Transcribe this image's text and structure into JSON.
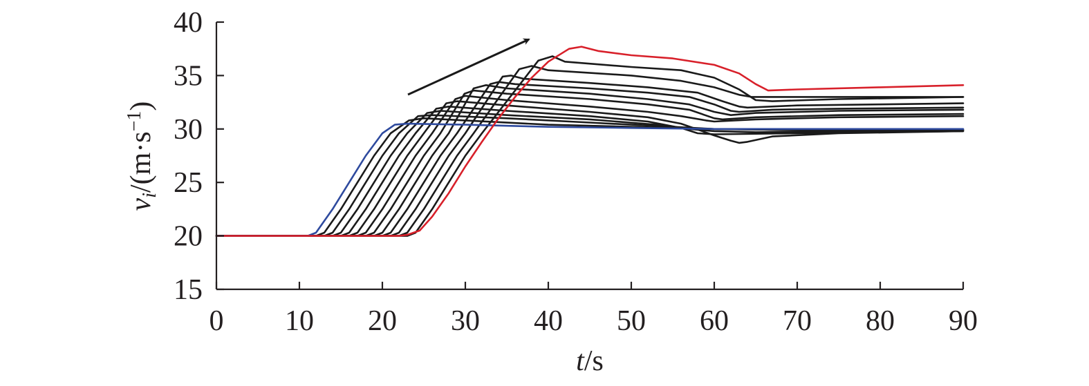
{
  "chart_data": {
    "type": "line",
    "title": "",
    "xlabel_var": "t",
    "xlabel_unit": "/s",
    "ylabel_var": "v",
    "ylabel_sub": "i",
    "ylabel_unit_open": "/(m·s",
    "ylabel_unit_sup": "−1",
    "ylabel_unit_close": ")",
    "xlim": [
      0,
      90
    ],
    "ylim": [
      15,
      40
    ],
    "xticks": [
      0,
      10,
      20,
      30,
      40,
      50,
      60,
      70,
      80,
      90
    ],
    "yticks": [
      15,
      20,
      25,
      30,
      35,
      40
    ],
    "grid": false,
    "legend": "none",
    "annotation": "arrow indicating increasing peak velocity",
    "colors": {
      "first": "#2e4a9e",
      "middle": "#1a1a1a",
      "last": "#d8202a",
      "axis": "#231f20"
    },
    "series": [
      {
        "color": "first",
        "points": [
          [
            0,
            20
          ],
          [
            11,
            20
          ],
          [
            12,
            20.3
          ],
          [
            14,
            22.5
          ],
          [
            16,
            25
          ],
          [
            18,
            27.5
          ],
          [
            20,
            29.6
          ],
          [
            21.5,
            30.4
          ],
          [
            23,
            30.5
          ],
          [
            30,
            30.4
          ],
          [
            40,
            30.2
          ],
          [
            50,
            30.1
          ],
          [
            60,
            30
          ],
          [
            70,
            30
          ],
          [
            80,
            30
          ],
          [
            90,
            30
          ]
        ]
      },
      {
        "color": "middle",
        "points": [
          [
            0,
            20
          ],
          [
            12,
            20
          ],
          [
            13,
            20.3
          ],
          [
            15,
            22.5
          ],
          [
            17,
            25
          ],
          [
            19,
            27.5
          ],
          [
            21,
            29.6
          ],
          [
            23.2,
            30.8
          ],
          [
            25,
            31
          ],
          [
            30,
            30.8
          ],
          [
            40,
            30.4
          ],
          [
            50,
            30.2
          ],
          [
            60,
            30
          ],
          [
            70,
            29.9
          ],
          [
            80,
            29.9
          ],
          [
            90,
            29.9
          ]
        ]
      },
      {
        "color": "middle",
        "points": [
          [
            0,
            20
          ],
          [
            13,
            20
          ],
          [
            14,
            20.3
          ],
          [
            16,
            22.5
          ],
          [
            18,
            25
          ],
          [
            20,
            27.5
          ],
          [
            22,
            29.6
          ],
          [
            24.3,
            31.2
          ],
          [
            26,
            31.3
          ],
          [
            35,
            31
          ],
          [
            45,
            30.6
          ],
          [
            55,
            30.2
          ],
          [
            60,
            30
          ],
          [
            70,
            29.9
          ],
          [
            80,
            29.9
          ],
          [
            90,
            29.9
          ]
        ]
      },
      {
        "color": "middle",
        "points": [
          [
            0,
            20
          ],
          [
            14,
            20
          ],
          [
            15,
            20.3
          ],
          [
            17,
            22.5
          ],
          [
            19,
            25
          ],
          [
            21,
            27.5
          ],
          [
            23,
            29.6
          ],
          [
            25.4,
            31.5
          ],
          [
            27,
            31.7
          ],
          [
            35,
            31.3
          ],
          [
            45,
            30.9
          ],
          [
            53,
            30.4
          ],
          [
            57,
            30
          ],
          [
            60,
            29.8
          ],
          [
            65,
            29.7
          ],
          [
            80,
            29.8
          ],
          [
            90,
            29.9
          ]
        ]
      },
      {
        "color": "middle",
        "points": [
          [
            0,
            20
          ],
          [
            15,
            20
          ],
          [
            16,
            20.3
          ],
          [
            18,
            22.5
          ],
          [
            20,
            25
          ],
          [
            22,
            27.5
          ],
          [
            24,
            29.6
          ],
          [
            26.5,
            31.9
          ],
          [
            28,
            32.1
          ],
          [
            35,
            31.7
          ],
          [
            45,
            31.2
          ],
          [
            52,
            30.7
          ],
          [
            56,
            30.1
          ],
          [
            58,
            29.6
          ],
          [
            60,
            29.5
          ],
          [
            70,
            29.6
          ],
          [
            90,
            29.8
          ]
        ]
      },
      {
        "color": "middle",
        "points": [
          [
            0,
            20
          ],
          [
            16,
            20
          ],
          [
            17,
            20.3
          ],
          [
            19,
            22.5
          ],
          [
            21,
            25
          ],
          [
            23,
            27.5
          ],
          [
            25,
            29.6
          ],
          [
            27.7,
            32.4
          ],
          [
            29,
            32.6
          ],
          [
            35,
            32.2
          ],
          [
            45,
            31.6
          ],
          [
            52,
            31.1
          ],
          [
            56,
            30.5
          ],
          [
            60,
            29.4
          ],
          [
            62,
            28.9
          ],
          [
            63,
            28.7
          ],
          [
            64,
            28.8
          ],
          [
            67,
            29.3
          ],
          [
            75,
            29.6
          ],
          [
            90,
            29.8
          ]
        ]
      },
      {
        "color": "middle",
        "points": [
          [
            0,
            20
          ],
          [
            17,
            20
          ],
          [
            18,
            20.3
          ],
          [
            20,
            22.5
          ],
          [
            22,
            25
          ],
          [
            24,
            27.5
          ],
          [
            26,
            29.6
          ],
          [
            28.8,
            32.8
          ],
          [
            30,
            33.1
          ],
          [
            35,
            32.7
          ],
          [
            45,
            32.1
          ],
          [
            52,
            31.6
          ],
          [
            56,
            31.2
          ],
          [
            59,
            30.8
          ],
          [
            60,
            30.7
          ],
          [
            65,
            30.9
          ],
          [
            75,
            31.1
          ],
          [
            90,
            31.2
          ]
        ]
      },
      {
        "color": "middle",
        "points": [
          [
            0,
            20
          ],
          [
            18,
            20
          ],
          [
            19,
            20.3
          ],
          [
            21,
            22.5
          ],
          [
            23,
            25
          ],
          [
            25,
            27.5
          ],
          [
            27,
            29.6
          ],
          [
            29.9,
            33.3
          ],
          [
            31,
            33.6
          ],
          [
            35,
            33.3
          ],
          [
            45,
            32.8
          ],
          [
            52,
            32.3
          ],
          [
            57,
            31.8
          ],
          [
            60,
            31
          ],
          [
            61,
            30.9
          ],
          [
            65,
            31.1
          ],
          [
            75,
            31.3
          ],
          [
            90,
            31.4
          ]
        ]
      },
      {
        "color": "middle",
        "points": [
          [
            0,
            20
          ],
          [
            19,
            20
          ],
          [
            20,
            20.3
          ],
          [
            22,
            22.5
          ],
          [
            24,
            25
          ],
          [
            26,
            27.5
          ],
          [
            28,
            29.6
          ],
          [
            31,
            33.8
          ],
          [
            32.5,
            34.1
          ],
          [
            35,
            33.8
          ],
          [
            45,
            33.3
          ],
          [
            52,
            32.8
          ],
          [
            57,
            32.3
          ],
          [
            60,
            31.6
          ],
          [
            62,
            31.3
          ],
          [
            65,
            31.5
          ],
          [
            75,
            31.7
          ],
          [
            90,
            31.8
          ]
        ]
      },
      {
        "color": "middle",
        "points": [
          [
            0,
            20
          ],
          [
            20,
            20
          ],
          [
            21,
            20.3
          ],
          [
            23,
            22.5
          ],
          [
            25,
            25
          ],
          [
            27,
            27.5
          ],
          [
            29,
            29.6
          ],
          [
            33,
            34.2
          ],
          [
            34,
            34.4
          ],
          [
            36,
            34.2
          ],
          [
            45,
            33.8
          ],
          [
            52,
            33.4
          ],
          [
            57,
            33
          ],
          [
            60,
            32.3
          ],
          [
            62,
            31.7
          ],
          [
            63,
            31.6
          ],
          [
            67,
            31.8
          ],
          [
            75,
            31.9
          ],
          [
            90,
            32
          ]
        ]
      },
      {
        "color": "middle",
        "points": [
          [
            0,
            20
          ],
          [
            21,
            20
          ],
          [
            22,
            20.3
          ],
          [
            24,
            22.5
          ],
          [
            26,
            25
          ],
          [
            28,
            27.5
          ],
          [
            30,
            29.6
          ],
          [
            34.5,
            34.9
          ],
          [
            35.5,
            35
          ],
          [
            37,
            34.7
          ],
          [
            45,
            34.3
          ],
          [
            52,
            33.9
          ],
          [
            58,
            33.4
          ],
          [
            61,
            32.6
          ],
          [
            63,
            32.1
          ],
          [
            64,
            32
          ],
          [
            70,
            32.2
          ],
          [
            80,
            32.3
          ],
          [
            90,
            32.4
          ]
        ]
      },
      {
        "color": "middle",
        "points": [
          [
            0,
            20
          ],
          [
            22,
            20
          ],
          [
            23,
            20.3
          ],
          [
            25,
            22.5
          ],
          [
            27,
            25
          ],
          [
            29,
            27.5
          ],
          [
            31,
            29.6
          ],
          [
            36.5,
            35.6
          ],
          [
            38,
            35.9
          ],
          [
            40,
            35.5
          ],
          [
            50,
            35
          ],
          [
            56,
            34.5
          ],
          [
            60,
            33.9
          ],
          [
            63,
            33.2
          ],
          [
            64.5,
            33
          ],
          [
            70,
            33
          ],
          [
            80,
            33
          ],
          [
            90,
            33
          ]
        ]
      },
      {
        "color": "middle",
        "points": [
          [
            0,
            20
          ],
          [
            23,
            20
          ],
          [
            24,
            20.3
          ],
          [
            26,
            22.5
          ],
          [
            28,
            25
          ],
          [
            30,
            27.5
          ],
          [
            32,
            29.6
          ],
          [
            38.8,
            36.4
          ],
          [
            40.5,
            36.8
          ],
          [
            42,
            36.3
          ],
          [
            50,
            35.8
          ],
          [
            56,
            35.5
          ],
          [
            60,
            34.8
          ],
          [
            63,
            33.7
          ],
          [
            65,
            32.7
          ],
          [
            67,
            32.6
          ],
          [
            75,
            32.8
          ],
          [
            90,
            33
          ]
        ]
      },
      {
        "color": "last",
        "points": [
          [
            0,
            20
          ],
          [
            22,
            20
          ],
          [
            23,
            20.1
          ],
          [
            24.5,
            20.5
          ],
          [
            26,
            21.8
          ],
          [
            28,
            24
          ],
          [
            30,
            26.5
          ],
          [
            32,
            28.8
          ],
          [
            34,
            31
          ],
          [
            36,
            33
          ],
          [
            38,
            34.8
          ],
          [
            40,
            36.3
          ],
          [
            42.5,
            37.5
          ],
          [
            44,
            37.7
          ],
          [
            46,
            37.3
          ],
          [
            50,
            36.9
          ],
          [
            55,
            36.6
          ],
          [
            60,
            36
          ],
          [
            63,
            35.2
          ],
          [
            65,
            34.2
          ],
          [
            66.5,
            33.6
          ],
          [
            70,
            33.7
          ],
          [
            80,
            33.9
          ],
          [
            90,
            34.1
          ]
        ]
      }
    ]
  }
}
